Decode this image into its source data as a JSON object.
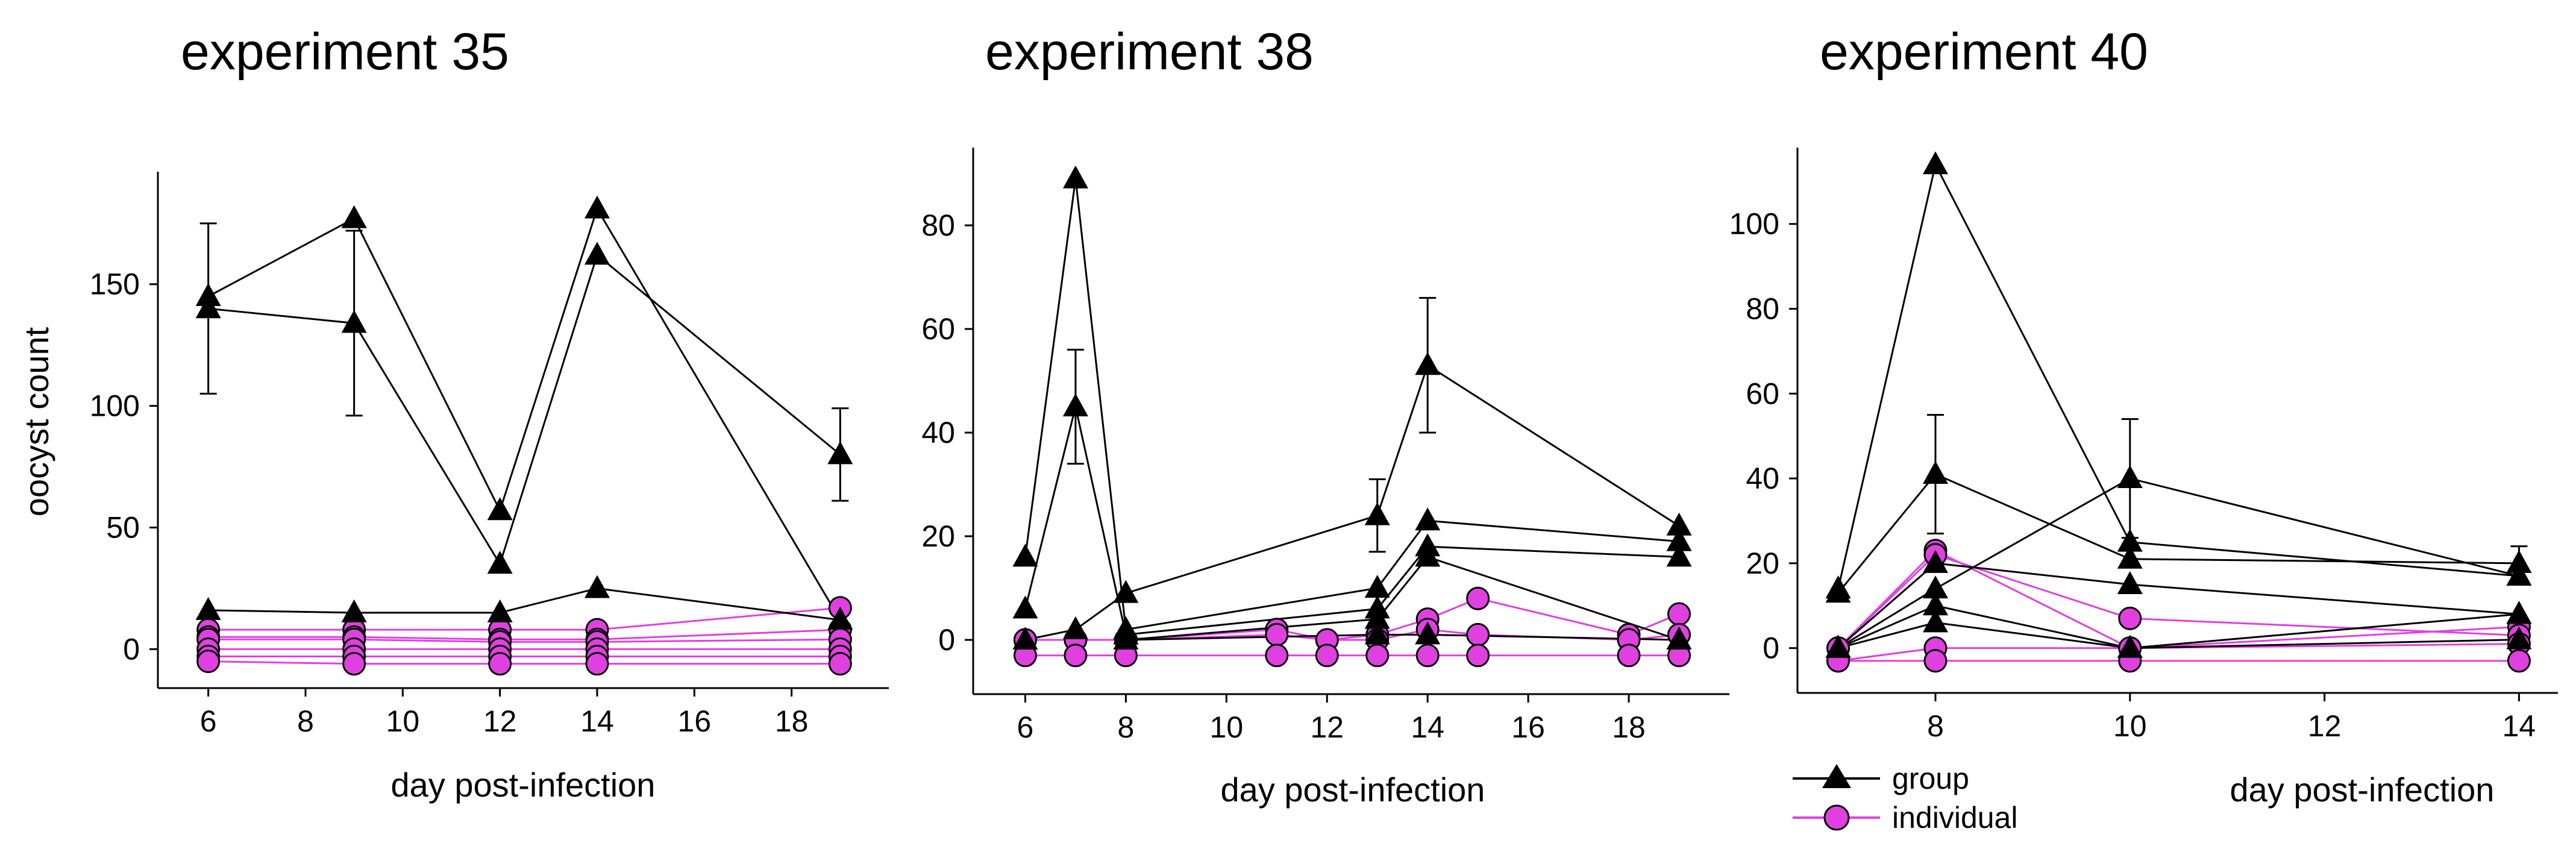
{
  "colors": {
    "group": "#000000",
    "individual": "#e040e0",
    "axis": "#000000"
  },
  "legend": {
    "group_label": "group",
    "individual_label": "individual",
    "placement": "bottom-left of third panel"
  },
  "chart_data": [
    {
      "type": "line",
      "title": "experiment 35",
      "xlabel": "day post-infection",
      "ylabel": "oocyst count",
      "xlim": [
        5,
        20
      ],
      "ylim": [
        -15,
        195
      ],
      "xticks": [
        6,
        8,
        10,
        12,
        14,
        16,
        18
      ],
      "yticks": [
        0,
        50,
        100,
        150
      ],
      "group_series": [
        {
          "x": [
            6,
            9,
            12,
            14,
            19
          ],
          "y": [
            145,
            177,
            57,
            181,
            12
          ],
          "err": [
            0,
            0,
            0,
            0,
            0
          ]
        },
        {
          "x": [
            6,
            9,
            12,
            14,
            19
          ],
          "y": [
            140,
            134,
            35,
            162,
            80
          ],
          "err": [
            35,
            38,
            0,
            0,
            19
          ]
        },
        {
          "x": [
            6,
            9,
            12,
            14,
            19
          ],
          "y": [
            16,
            15,
            15,
            25,
            12
          ],
          "err": [
            0,
            0,
            0,
            0,
            0
          ]
        }
      ],
      "individual_series": [
        {
          "x": [
            6,
            9,
            12,
            14,
            19
          ],
          "y": [
            8,
            8,
            8,
            8,
            17
          ]
        },
        {
          "x": [
            6,
            9,
            12,
            14,
            19
          ],
          "y": [
            5,
            5,
            4,
            4,
            8
          ]
        },
        {
          "x": [
            6,
            9,
            12,
            14,
            19
          ],
          "y": [
            4,
            4,
            3,
            3,
            4
          ]
        },
        {
          "x": [
            6,
            9,
            12,
            14,
            19
          ],
          "y": [
            0,
            0,
            0,
            0,
            0
          ]
        },
        {
          "x": [
            6,
            9,
            12,
            14,
            19
          ],
          "y": [
            -3,
            -3,
            -3,
            -3,
            -3
          ]
        },
        {
          "x": [
            6,
            9,
            12,
            14,
            19
          ],
          "y": [
            -5,
            -6,
            -6,
            -6,
            -6
          ]
        }
      ]
    },
    {
      "type": "line",
      "title": "experiment 38",
      "xlabel": "day post-infection",
      "ylabel": "",
      "xlim": [
        5,
        20
      ],
      "ylim": [
        -10,
        95
      ],
      "xticks": [
        6,
        8,
        10,
        12,
        14,
        16,
        18
      ],
      "yticks": [
        0,
        20,
        40,
        60,
        80
      ],
      "group_series": [
        {
          "x": [
            6,
            7,
            8
          ],
          "y": [
            16,
            89,
            2
          ],
          "err": [
            0,
            0,
            0
          ]
        },
        {
          "x": [
            6,
            7,
            8
          ],
          "y": [
            6,
            45,
            1
          ],
          "err": [
            0,
            11,
            0
          ]
        },
        {
          "x": [
            6,
            7,
            8,
            13,
            14,
            19
          ],
          "y": [
            0,
            2,
            9,
            24,
            53,
            22
          ],
          "err": [
            0,
            0,
            0,
            7,
            13,
            0
          ]
        },
        {
          "x": [
            8,
            13,
            14,
            19
          ],
          "y": [
            2,
            10,
            23,
            19
          ],
          "err": [
            0,
            0,
            0,
            0
          ]
        },
        {
          "x": [
            8,
            13,
            14,
            19
          ],
          "y": [
            1,
            6,
            18,
            16
          ],
          "err": [
            0,
            0,
            0,
            0
          ]
        },
        {
          "x": [
            8,
            13,
            14,
            19
          ],
          "y": [
            0,
            4,
            16,
            0
          ],
          "err": [
            0,
            0,
            0,
            0
          ]
        },
        {
          "x": [
            8,
            13,
            14,
            19
          ],
          "y": [
            0,
            1,
            1,
            0
          ],
          "err": [
            0,
            0,
            0,
            0
          ]
        }
      ],
      "individual_series": [
        {
          "x": [
            6,
            7,
            8,
            11,
            12,
            13,
            14,
            15,
            18,
            19
          ],
          "y": [
            0,
            0,
            0,
            2,
            0,
            1,
            4,
            8,
            1,
            5
          ]
        },
        {
          "x": [
            6,
            7,
            8,
            11,
            12,
            13,
            14,
            15,
            18,
            19
          ],
          "y": [
            0,
            0,
            0,
            1,
            0,
            0,
            2,
            1,
            0,
            1
          ]
        },
        {
          "x": [
            6,
            7,
            8,
            11,
            12,
            13,
            14,
            15,
            18,
            19
          ],
          "y": [
            -3,
            -3,
            -3,
            -3,
            -3,
            -3,
            -3,
            -3,
            -3,
            -3
          ]
        }
      ]
    },
    {
      "type": "line",
      "title": "experiment 40",
      "xlabel": "day post-infection",
      "ylabel": "",
      "xlim": [
        6.6,
        14.4
      ],
      "ylim": [
        -10,
        118
      ],
      "xticks": [
        8,
        10,
        12,
        14
      ],
      "yticks": [
        0,
        20,
        40,
        60,
        80,
        100
      ],
      "group_series": [
        {
          "x": [
            7,
            8,
            10,
            14
          ],
          "y": [
            14,
            114,
            25,
            17
          ],
          "err": [
            0,
            0,
            0,
            0
          ]
        },
        {
          "x": [
            7,
            8,
            10,
            14
          ],
          "y": [
            13,
            41,
            21,
            20
          ],
          "err": [
            0,
            14,
            0,
            4
          ]
        },
        {
          "x": [
            7,
            8,
            10,
            14
          ],
          "y": [
            0,
            14,
            40,
            17
          ],
          "err": [
            0,
            0,
            14,
            0
          ]
        },
        {
          "x": [
            7,
            8,
            10,
            14
          ],
          "y": [
            0,
            20,
            15,
            8
          ],
          "err": [
            0,
            0,
            0,
            0
          ]
        },
        {
          "x": [
            7,
            8,
            10,
            14
          ],
          "y": [
            0,
            10,
            0,
            8
          ],
          "err": [
            0,
            0,
            0,
            0
          ]
        },
        {
          "x": [
            7,
            8,
            10,
            14
          ],
          "y": [
            0,
            6,
            0,
            2
          ],
          "err": [
            0,
            0,
            0,
            0
          ]
        }
      ],
      "individual_series": [
        {
          "x": [
            7,
            8,
            10,
            14
          ],
          "y": [
            0,
            23,
            0,
            5
          ]
        },
        {
          "x": [
            7,
            8,
            10,
            14
          ],
          "y": [
            0,
            22,
            7,
            3
          ]
        },
        {
          "x": [
            7,
            8,
            10,
            14
          ],
          "y": [
            -3,
            0,
            0,
            1
          ]
        },
        {
          "x": [
            7,
            8,
            10,
            14
          ],
          "y": [
            -3,
            -3,
            -3,
            -3
          ]
        }
      ]
    }
  ]
}
